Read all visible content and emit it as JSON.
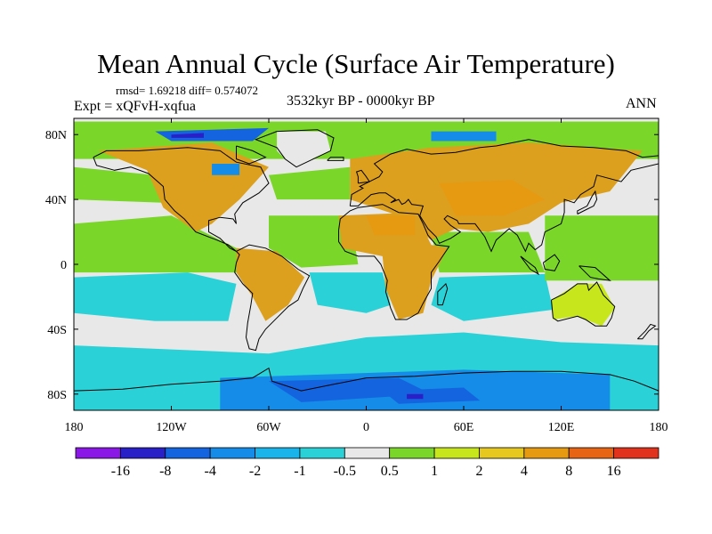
{
  "figure": {
    "title": "Mean Annual Cycle (Surface Air Temperature)",
    "stats": "rmsd= 1.69218 diff= 0.574072",
    "experiment": "Expt = xQFvH-xqfua",
    "period": "3532kyr BP - 0000kyr BP",
    "season": "ANN"
  },
  "map_data": {
    "variable": "Surface Air Temperature difference",
    "projection": "equirectangular",
    "lon_range": [
      -180,
      180
    ],
    "lat_range": [
      -90,
      90
    ],
    "lon_ticks": [
      {
        "value": -180,
        "label": "180"
      },
      {
        "value": -120,
        "label": "120W"
      },
      {
        "value": -60,
        "label": "60W"
      },
      {
        "value": 0,
        "label": "0"
      },
      {
        "value": 60,
        "label": "60E"
      },
      {
        "value": 120,
        "label": "120E"
      },
      {
        "value": 180,
        "label": "180"
      }
    ],
    "lat_ticks": [
      {
        "value": 80,
        "label": "80N"
      },
      {
        "value": 40,
        "label": "40N"
      },
      {
        "value": 0,
        "label": "0"
      },
      {
        "value": -40,
        "label": "40S"
      },
      {
        "value": -80,
        "label": "80S"
      }
    ]
  },
  "colorbar": {
    "colors": [
      "#8a17e6",
      "#2a20c8",
      "#1464e0",
      "#148ce8",
      "#18b4ea",
      "#2ad2d8",
      "#e8e8e8",
      "#7ad628",
      "#c8e61c",
      "#e6c81e",
      "#e69a12",
      "#e66414",
      "#e0321c"
    ],
    "labels": [
      "-16",
      "-8",
      "-4",
      "-2",
      "-1",
      "-0.5",
      "0.5",
      "1",
      "2",
      "4",
      "8",
      "16"
    ]
  },
  "palette": {
    "ocean_background": "#e8e8e8",
    "land_warm": "#dca01e",
    "land_mild": "#c8e61c",
    "land_green": "#7ad628",
    "cool_light": "#2ad2d8",
    "cool_mid": "#18b4ea",
    "cool_strong": "#148ce8",
    "cold": "#1464e0",
    "very_cold": "#2a20c8",
    "warm_strong": "#e69a12"
  }
}
